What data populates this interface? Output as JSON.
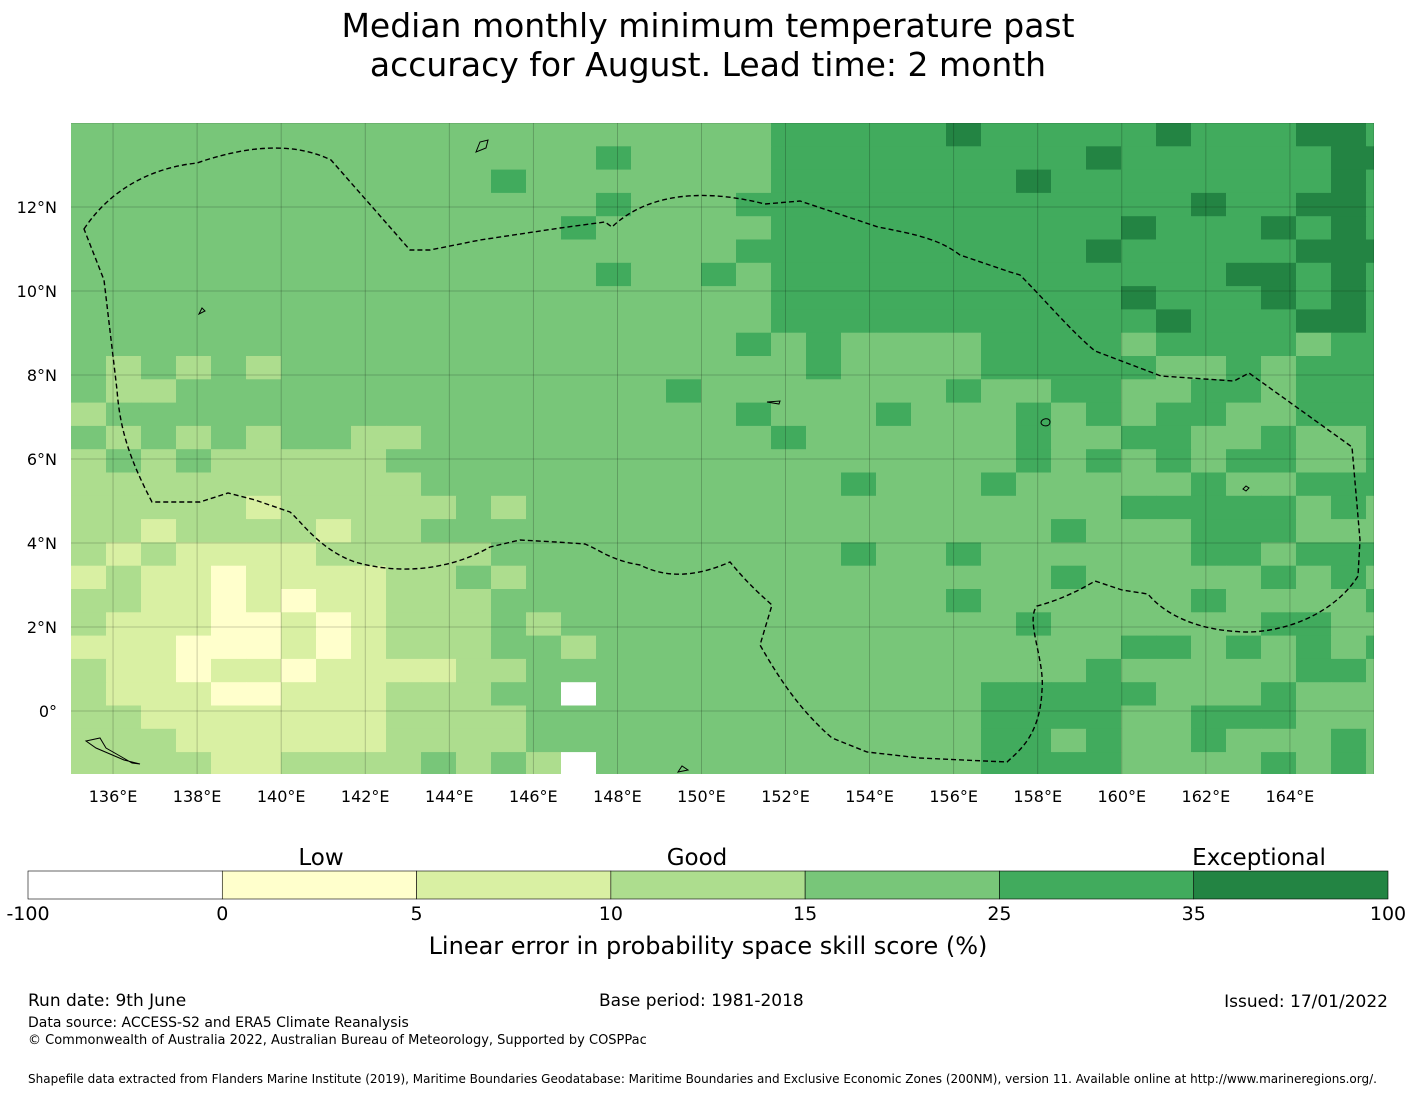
{
  "title": {
    "line1": "Median monthly minimum temperature past",
    "line2": "accuracy for August. Lead time: 2 month"
  },
  "map": {
    "lon_range": [
      135,
      166
    ],
    "lat_range": [
      -1.5,
      14
    ],
    "x_ticks": [
      "136°E",
      "138°E",
      "140°E",
      "142°E",
      "144°E",
      "146°E",
      "148°E",
      "150°E",
      "152°E",
      "154°E",
      "156°E",
      "158°E",
      "160°E",
      "162°E",
      "164°E"
    ],
    "y_ticks": [
      "12°N",
      "10°N",
      "8°N",
      "6°N",
      "4°N",
      "2°N",
      "0°"
    ],
    "grid": true,
    "cell_deg": 0.833
  },
  "colorbar": {
    "category_labels": [
      "Low",
      "Good",
      "Exceptional"
    ],
    "ticks": [
      "-100",
      "0",
      "5",
      "10",
      "15",
      "25",
      "35",
      "100"
    ],
    "colors": [
      "#ffffff",
      "#ffffcc",
      "#d9f0a3",
      "#addd8e",
      "#78c679",
      "#41ab5d",
      "#238443"
    ],
    "label": "Linear error in probability space skill score (%)"
  },
  "footer": {
    "run_date": "Run date: 9th June",
    "base_period": "Base period: 1981-2018",
    "issued": "Issued: 17/01/2022",
    "data_source": "Data source: ACCESS-S2 and ERA5 Climate Reanalysis",
    "copyright": "© Commonwealth of Australia 2022, Australian Bureau of Meteorology, Supported by COSPPac",
    "shapefile": "Shapefile data extracted from Flanders Marine Institute (2019), Maritime Boundaries Geodatabase: Maritime Boundaries and Exclusive Economic Zones (200NM), version 11. Available online at http://www.marineregions.org/."
  }
}
